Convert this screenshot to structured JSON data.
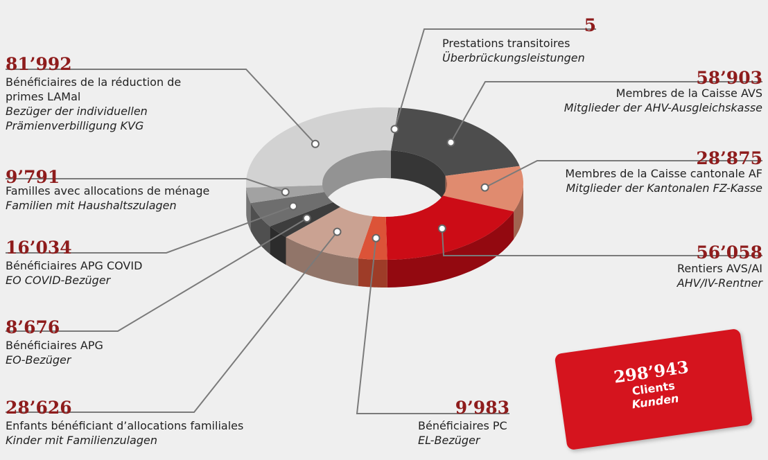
{
  "chart_data": {
    "type": "donut3d",
    "categories": [
      "Prestations transitoires",
      "Membres de la Caisse AVS",
      "Membres de la Caisse cantonale AF",
      "Rentiers AVS/AI",
      "Bénéficiaires PC",
      "Enfants bénéficiant d’allocations familiales",
      "Bénéficiaires APG",
      "Bénéficiaires APG COVID",
      "Familles avec allocations de ménage",
      "Bénéficiaires de la réduction de primes LAMal"
    ],
    "categories_de": [
      "Überbrückungsleistungen",
      "Mitglieder der AHV-Ausgleichskasse",
      "Mitglieder der Kantonalen FZ-Kasse",
      "AHV/IV-Rentner",
      "EL-Bezüger",
      "Kinder mit Familienzulagen",
      "EO-Bezüger",
      "EO COVID-Bezüger",
      "Familien mit Haushaltszulagen",
      "Bezüger der individuellen Prämienverbilligung KVG"
    ],
    "values": [
      5,
      58903,
      28875,
      56058,
      9983,
      28626,
      8676,
      16034,
      9791,
      81992
    ],
    "value_labels": [
      "5",
      "58’903",
      "28’875",
      "56’058",
      "9’983",
      "28’626",
      "8’676",
      "16’034",
      "9’791",
      "81’992"
    ],
    "colors": [
      "#8a8a8a",
      "#4d4d4d",
      "#e08b6f",
      "#cc0c16",
      "#dc5338",
      "#caa292",
      "#3d3d3d",
      "#6e6e6e",
      "#a2a2a2",
      "#d2d2d2"
    ],
    "total": {
      "value": 298943,
      "label": "298’943"
    },
    "total_label": "Clients",
    "total_label_de": "Kunden"
  }
}
